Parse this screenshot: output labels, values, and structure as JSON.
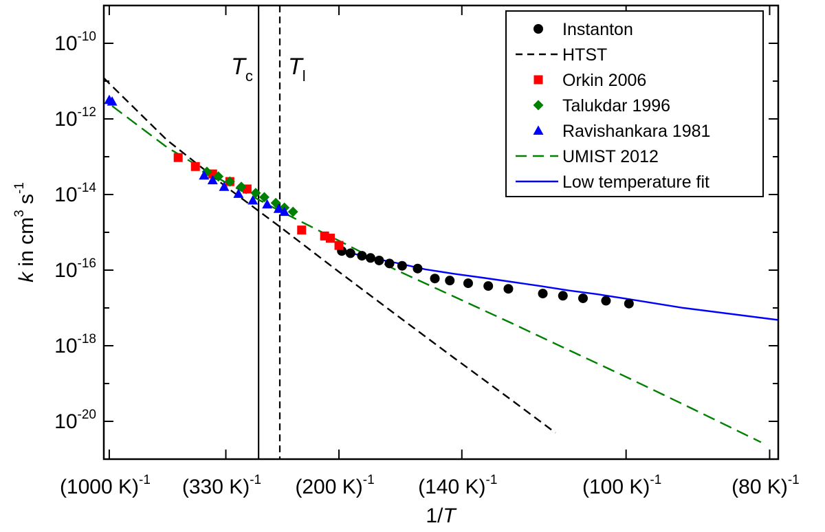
{
  "chart_data": {
    "type": "scatter",
    "title": "",
    "xlabel": "1/T",
    "ylabel": "k in cm^3 s^-1",
    "x_unit": "1/K",
    "xlim": [
      0.000905,
      0.01265
    ],
    "ylim": [
      1e-21,
      1e-09
    ],
    "y_scale": "log",
    "grid": false,
    "legend_position": "top-right",
    "x_ticks": [
      {
        "base": "(1000 K)",
        "exp": "-1",
        "value": 0.001
      },
      {
        "base": "(330 K)",
        "exp": "-1",
        "value": 0.00303
      },
      {
        "base": "(200 K)",
        "exp": "-1",
        "value": 0.005
      },
      {
        "base": "(140 K)",
        "exp": "-1",
        "value": 0.00714
      },
      {
        "base": "(100 K)",
        "exp": "-1",
        "value": 0.01
      },
      {
        "base": "(80 K)",
        "exp": "-1",
        "value": 0.0125
      }
    ],
    "y_ticks": [
      {
        "base": "10",
        "exp": "-10",
        "value": 1e-10
      },
      {
        "base": "10",
        "exp": "-12",
        "value": 1e-12
      },
      {
        "base": "10",
        "exp": "-14",
        "value": 1e-14
      },
      {
        "base": "10",
        "exp": "-16",
        "value": 1e-16
      },
      {
        "base": "10",
        "exp": "-18",
        "value": 1e-18
      },
      {
        "base": "10",
        "exp": "-20",
        "value": 1e-20
      }
    ],
    "y_minor_ticks": [
      1e-11,
      1e-13,
      1e-15,
      1e-17,
      1e-19
    ],
    "vertical_lines": [
      {
        "name": "Tc",
        "label_main": "T",
        "label_sub": "c",
        "x": 0.0036,
        "style": "solid"
      },
      {
        "name": "Tl",
        "label_main": "T",
        "label_sub": "l",
        "x": 0.00397,
        "style": "dashed"
      }
    ],
    "series": [
      {
        "name": "Instanton",
        "kind": "points",
        "marker": "circle",
        "color": "#000000",
        "points": [
          [
            0.00505,
            3.2e-16
          ],
          [
            0.0052,
            2.8e-16
          ],
          [
            0.0054,
            2.4e-16
          ],
          [
            0.00555,
            2.1e-16
          ],
          [
            0.0057,
            1.8e-16
          ],
          [
            0.00588,
            1.5e-16
          ],
          [
            0.0061,
            1.3e-16
          ],
          [
            0.00637,
            1.1e-16
          ],
          [
            0.00667,
            6e-17
          ],
          [
            0.00693,
            5.3e-17
          ],
          [
            0.00725,
            4.5e-17
          ],
          [
            0.0076,
            3.8e-17
          ],
          [
            0.00795,
            3.2e-17
          ],
          [
            0.00855,
            2.4e-17
          ],
          [
            0.0089,
            2.1e-17
          ],
          [
            0.00925,
            1.8e-17
          ],
          [
            0.00965,
            1.55e-17
          ],
          [
            0.01005,
            1.3e-17
          ]
        ]
      },
      {
        "name": "HTST",
        "kind": "line",
        "dash": "12 7",
        "color": "#000000",
        "points": [
          [
            0.000905,
            1.2e-11
          ],
          [
            0.002,
            2.8e-13
          ],
          [
            0.003,
            1.75e-14
          ],
          [
            0.004,
            1.3e-15
          ],
          [
            0.005,
            9e-17
          ],
          [
            0.006,
            6.5e-18
          ],
          [
            0.007,
            4.8e-19
          ],
          [
            0.008,
            3.7e-20
          ],
          [
            0.00877,
            5e-21
          ]
        ]
      },
      {
        "name": "Orkin 2006",
        "kind": "points",
        "marker": "square",
        "color": "#ff0000",
        "points": [
          [
            0.0022,
            9.5e-14
          ],
          [
            0.0025,
            5.5e-14
          ],
          [
            0.0028,
            3.5e-14
          ],
          [
            0.0031,
            2.2e-14
          ],
          [
            0.0034,
            1.4e-14
          ],
          [
            0.00435,
            1.15e-15
          ],
          [
            0.00475,
            8e-16
          ],
          [
            0.00485,
            7e-16
          ],
          [
            0.005,
            4.5e-16
          ]
        ]
      },
      {
        "name": "Talukdar 1996",
        "kind": "points",
        "marker": "diamond",
        "color": "#008000",
        "points": [
          [
            0.0027,
            4e-14
          ],
          [
            0.0029,
            3e-14
          ],
          [
            0.0031,
            2.2e-14
          ],
          [
            0.0033,
            1.6e-14
          ],
          [
            0.00355,
            1.1e-14
          ],
          [
            0.0037,
            8.5e-15
          ],
          [
            0.0039,
            6e-15
          ],
          [
            0.00405,
            4.5e-15
          ],
          [
            0.0042,
            3.5e-15
          ]
        ]
      },
      {
        "name": "Ravishankara 1981",
        "kind": "points",
        "marker": "triangle",
        "color": "#0000ff",
        "points": [
          [
            0.001,
            3.2e-12
          ],
          [
            0.00105,
            2.9e-12
          ],
          [
            0.00265,
            3.2e-14
          ],
          [
            0.0028,
            2.4e-14
          ],
          [
            0.003,
            1.6e-14
          ],
          [
            0.00325,
            1.05e-14
          ],
          [
            0.0035,
            7e-15
          ],
          [
            0.00375,
            5.5e-15
          ],
          [
            0.00395,
            4.2e-15
          ],
          [
            0.00405,
            3.5e-15
          ]
        ]
      },
      {
        "name": "UMIST 2012",
        "kind": "line",
        "dash": "18 9",
        "color": "#008000",
        "points": [
          [
            0.00105,
            2.2e-12
          ],
          [
            0.002,
            1.8e-13
          ],
          [
            0.003,
            2.2e-14
          ],
          [
            0.004,
            3.5e-15
          ],
          [
            0.005,
            6e-16
          ],
          [
            0.006,
            1e-16
          ],
          [
            0.007,
            2e-17
          ],
          [
            0.008,
            4e-18
          ],
          [
            0.009,
            7.7e-19
          ],
          [
            0.01,
            1.5e-19
          ],
          [
            0.011,
            2.8e-20
          ],
          [
            0.01235,
            2.8e-21
          ]
        ]
      },
      {
        "name": "Low temperature fit",
        "kind": "line",
        "dash": "",
        "color": "#0000ff",
        "points": [
          [
            0.005,
            3.4e-16
          ],
          [
            0.0055,
            2.2e-16
          ],
          [
            0.006,
            1.55e-16
          ],
          [
            0.0065,
            1.05e-16
          ],
          [
            0.007,
            8e-17
          ],
          [
            0.0075,
            6.3e-17
          ],
          [
            0.008,
            4.9e-17
          ],
          [
            0.0085,
            3.8e-17
          ],
          [
            0.009,
            2.9e-17
          ],
          [
            0.0095,
            2.3e-17
          ],
          [
            0.01,
            1.75e-17
          ],
          [
            0.011,
            1e-17
          ],
          [
            0.01265,
            4.8e-18
          ]
        ]
      }
    ]
  }
}
